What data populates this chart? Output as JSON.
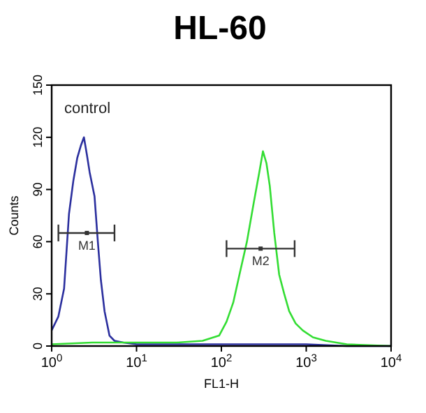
{
  "chart_data": {
    "type": "line",
    "title": "HL-60",
    "xlabel": "FL1-H",
    "ylabel": "Counts",
    "log": "x",
    "grid": false,
    "marker": "none",
    "line_style": "solid",
    "xlim": [
      1,
      10000
    ],
    "ylim": [
      0,
      150
    ],
    "xticks": [
      {
        "value": 1,
        "label": "10$^{0}$"
      },
      {
        "value": 10,
        "label": "10$^{1}$"
      },
      {
        "value": 100,
        "label": "10$^{2}$"
      },
      {
        "value": 1000,
        "label": "10$^{3}$"
      },
      {
        "value": 10000,
        "label": "10$^{4}$"
      }
    ],
    "yticks": [
      0,
      30,
      60,
      90,
      120,
      150
    ],
    "series": [
      {
        "color": "#2b2f9e",
        "x": [
          1,
          1.2,
          1.4,
          1.6,
          1.8,
          2,
          2.2,
          2.4,
          2.6,
          2.8,
          3.2,
          3.5,
          3.8,
          4.2,
          4.8,
          5.5,
          7,
          10,
          20,
          50,
          100,
          300,
          1000,
          3000,
          10000
        ],
        "values": [
          9,
          17,
          33,
          76,
          95,
          108,
          115,
          120,
          110,
          100,
          86,
          60,
          38,
          20,
          6,
          3,
          2,
          1,
          1,
          1,
          1,
          1,
          1,
          0,
          0
        ]
      },
      {
        "color": "#33dd33",
        "x": [
          1,
          3,
          10,
          30,
          60,
          94,
          115,
          138,
          165,
          200,
          240,
          280,
          309,
          340,
          372,
          420,
          480,
          550,
          630,
          750,
          910,
          1200,
          1700,
          3000,
          10000
        ],
        "values": [
          1,
          2,
          2,
          2,
          3,
          6,
          14,
          25,
          42,
          60,
          82,
          100,
          112,
          105,
          92,
          65,
          41,
          30,
          20,
          13,
          9,
          5,
          3,
          1,
          0
        ]
      },
      {
        "type": "scatter",
        "name": "M1",
        "color": "#333333",
        "marker": "square",
        "x": [
          2.6
        ],
        "values": [
          65
        ],
        "xerrors": [
          [
            1.2,
            5.5
          ]
        ]
      },
      {
        "type": "scatter",
        "name": "M2",
        "color": "#333333",
        "marker": "square",
        "x": [
          290
        ],
        "values": [
          56
        ],
        "xerrors": [
          [
            115,
            730
          ]
        ]
      }
    ],
    "annotations": [
      "control"
    ]
  }
}
